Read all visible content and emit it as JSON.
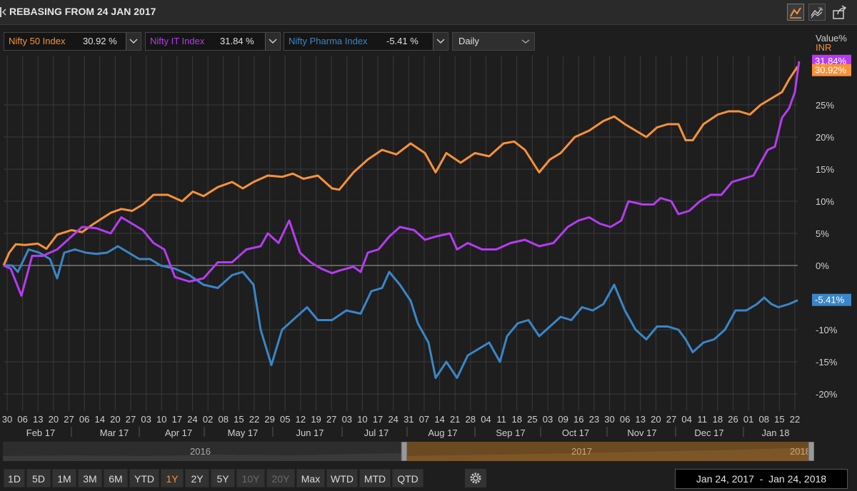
{
  "header": {
    "title": "REBASING FROM 24 JAN 2017"
  },
  "legend": [
    {
      "name": "Nifty 50 Index",
      "value": "30.92 %",
      "color": "#f7923a"
    },
    {
      "name": "Nifty IT Index",
      "value": "31.84 %",
      "color": "#b53cf0"
    },
    {
      "name": "Nifty Pharma Index",
      "value": "-5.41 %",
      "color": "#3a86c8"
    }
  ],
  "frequency": {
    "selected": "Daily"
  },
  "axis_label": {
    "line1": "Value%",
    "line2": "INR"
  },
  "chart_data": {
    "type": "line",
    "title": "REBASING FROM 24 JAN 2017",
    "ylabel": "Value% INR",
    "ylim": [
      -22,
      33
    ],
    "y_ticks": [
      {
        "v": 25,
        "label": "25%"
      },
      {
        "v": 20,
        "label": "20%"
      },
      {
        "v": 15,
        "label": "15%"
      },
      {
        "v": 10,
        "label": "10%"
      },
      {
        "v": 5,
        "label": "5%"
      },
      {
        "v": 0,
        "label": "0%"
      },
      {
        "v": -10,
        "label": "-10%"
      },
      {
        "v": -15,
        "label": "-15%"
      },
      {
        "v": -20,
        "label": "-20%"
      }
    ],
    "x_tick_labels": [
      "30",
      "06",
      "13",
      "20",
      "27",
      "06",
      "14",
      "20",
      "27",
      "03",
      "10",
      "17",
      "24",
      "02",
      "08",
      "15",
      "22",
      "29",
      "05",
      "12",
      "19",
      "27",
      "03",
      "10",
      "17",
      "24",
      "31",
      "07",
      "14",
      "21",
      "28",
      "04",
      "11",
      "18",
      "25",
      "03",
      "09",
      "16",
      "23",
      "30",
      "06",
      "13",
      "20",
      "27",
      "04",
      "11",
      "18",
      "26",
      "01",
      "08",
      "15",
      "22"
    ],
    "x_month_labels": [
      "Feb 17",
      "Mar 17",
      "Apr 17",
      "May 17",
      "Jun 17",
      "Jul 17",
      "Aug 17",
      "Sep 17",
      "Oct 17",
      "Nov 17",
      "Dec 17",
      "Jan 18"
    ],
    "last_value_labels": [
      "31.84%",
      "30.92%",
      "-5.41%"
    ],
    "series": [
      {
        "name": "Nifty 50 Index",
        "color": "#f7923a",
        "points": [
          [
            0,
            0
          ],
          [
            8,
            2
          ],
          [
            17,
            3.3
          ],
          [
            30,
            3.2
          ],
          [
            48,
            3.4
          ],
          [
            60,
            2.6
          ],
          [
            75,
            4.8
          ],
          [
            95,
            5.5
          ],
          [
            110,
            5.2
          ],
          [
            125,
            6.4
          ],
          [
            150,
            8.2
          ],
          [
            165,
            8.8
          ],
          [
            180,
            8.5
          ],
          [
            195,
            9.5
          ],
          [
            210,
            11
          ],
          [
            230,
            11
          ],
          [
            250,
            10
          ],
          [
            265,
            11.5
          ],
          [
            280,
            10.8
          ],
          [
            300,
            12.2
          ],
          [
            320,
            13
          ],
          [
            335,
            12
          ],
          [
            350,
            13
          ],
          [
            370,
            14
          ],
          [
            390,
            13.8
          ],
          [
            405,
            14.3
          ],
          [
            420,
            13.5
          ],
          [
            440,
            14
          ],
          [
            460,
            12
          ],
          [
            470,
            11.8
          ],
          [
            490,
            14.5
          ],
          [
            510,
            16.5
          ],
          [
            530,
            18
          ],
          [
            550,
            17.3
          ],
          [
            570,
            19
          ],
          [
            590,
            17.5
          ],
          [
            605,
            14.5
          ],
          [
            620,
            17.5
          ],
          [
            640,
            16
          ],
          [
            660,
            17.5
          ],
          [
            680,
            17
          ],
          [
            700,
            19
          ],
          [
            715,
            19.3
          ],
          [
            730,
            18
          ],
          [
            750,
            14.5
          ],
          [
            765,
            16.5
          ],
          [
            780,
            17.5
          ],
          [
            800,
            20
          ],
          [
            820,
            21
          ],
          [
            840,
            22.5
          ],
          [
            855,
            23.2
          ],
          [
            870,
            22
          ],
          [
            885,
            21
          ],
          [
            900,
            20
          ],
          [
            915,
            21.5
          ],
          [
            930,
            22
          ],
          [
            945,
            22
          ],
          [
            955,
            19.5
          ],
          [
            965,
            19.5
          ],
          [
            980,
            22
          ],
          [
            1000,
            23.5
          ],
          [
            1015,
            24
          ],
          [
            1030,
            24
          ],
          [
            1045,
            23.5
          ],
          [
            1060,
            25
          ],
          [
            1075,
            26
          ],
          [
            1090,
            27
          ],
          [
            1100,
            29
          ],
          [
            1112,
            31
          ]
        ]
      },
      {
        "name": "Nifty IT Index",
        "color": "#b53cf0",
        "points": [
          [
            0,
            0
          ],
          [
            10,
            -0.5
          ],
          [
            25,
            -4.7
          ],
          [
            40,
            1.5
          ],
          [
            55,
            1.5
          ],
          [
            75,
            2.5
          ],
          [
            95,
            4.5
          ],
          [
            110,
            6
          ],
          [
            130,
            5.8
          ],
          [
            150,
            5
          ],
          [
            165,
            7.5
          ],
          [
            180,
            6.5
          ],
          [
            195,
            5.5
          ],
          [
            210,
            3.5
          ],
          [
            225,
            2.5
          ],
          [
            240,
            -1.8
          ],
          [
            260,
            -2.5
          ],
          [
            280,
            -2
          ],
          [
            300,
            0.5
          ],
          [
            320,
            0.5
          ],
          [
            340,
            2.5
          ],
          [
            360,
            3
          ],
          [
            370,
            5
          ],
          [
            385,
            3.5
          ],
          [
            400,
            7
          ],
          [
            415,
            2
          ],
          [
            430,
            0.5
          ],
          [
            445,
            -0.5
          ],
          [
            460,
            -1.2
          ],
          [
            470,
            -0.8
          ],
          [
            490,
            -0.2
          ],
          [
            500,
            -1
          ],
          [
            510,
            2
          ],
          [
            525,
            2.5
          ],
          [
            540,
            4.5
          ],
          [
            555,
            6
          ],
          [
            575,
            5.5
          ],
          [
            590,
            4
          ],
          [
            605,
            4.5
          ],
          [
            625,
            5
          ],
          [
            635,
            2.5
          ],
          [
            650,
            3.5
          ],
          [
            670,
            2.5
          ],
          [
            690,
            2.5
          ],
          [
            710,
            3.5
          ],
          [
            730,
            4
          ],
          [
            750,
            3
          ],
          [
            770,
            3.5
          ],
          [
            790,
            6
          ],
          [
            805,
            7
          ],
          [
            820,
            7.5
          ],
          [
            835,
            6.5
          ],
          [
            850,
            6
          ],
          [
            865,
            7
          ],
          [
            875,
            10
          ],
          [
            895,
            9.5
          ],
          [
            910,
            9.5
          ],
          [
            920,
            10.5
          ],
          [
            935,
            10
          ],
          [
            945,
            8
          ],
          [
            960,
            8.5
          ],
          [
            975,
            10
          ],
          [
            990,
            11
          ],
          [
            1005,
            11
          ],
          [
            1020,
            13
          ],
          [
            1035,
            13.5
          ],
          [
            1050,
            14
          ],
          [
            1060,
            16
          ],
          [
            1070,
            18
          ],
          [
            1080,
            18.5
          ],
          [
            1090,
            23
          ],
          [
            1100,
            24.5
          ],
          [
            1108,
            27
          ],
          [
            1114,
            31.8
          ]
        ]
      },
      {
        "name": "Nifty Pharma Index",
        "color": "#3a86c8",
        "points": [
          [
            0,
            0
          ],
          [
            12,
            0
          ],
          [
            20,
            -1
          ],
          [
            35,
            2.5
          ],
          [
            50,
            2
          ],
          [
            65,
            1
          ],
          [
            75,
            -2
          ],
          [
            85,
            2
          ],
          [
            100,
            2.5
          ],
          [
            115,
            2
          ],
          [
            130,
            1.8
          ],
          [
            145,
            2
          ],
          [
            160,
            3
          ],
          [
            175,
            2
          ],
          [
            190,
            1
          ],
          [
            205,
            1
          ],
          [
            220,
            0
          ],
          [
            240,
            -0.5
          ],
          [
            260,
            -1.5
          ],
          [
            280,
            -3
          ],
          [
            300,
            -3.5
          ],
          [
            320,
            -1.5
          ],
          [
            335,
            -1
          ],
          [
            350,
            -3
          ],
          [
            360,
            -10
          ],
          [
            375,
            -15.5
          ],
          [
            390,
            -10
          ],
          [
            410,
            -8
          ],
          [
            425,
            -6.5
          ],
          [
            440,
            -8.5
          ],
          [
            460,
            -8.5
          ],
          [
            480,
            -7
          ],
          [
            500,
            -7.5
          ],
          [
            515,
            -4
          ],
          [
            530,
            -3.5
          ],
          [
            540,
            -1
          ],
          [
            555,
            -3
          ],
          [
            570,
            -5.5
          ],
          [
            580,
            -9
          ],
          [
            595,
            -12
          ],
          [
            605,
            -17.5
          ],
          [
            620,
            -15
          ],
          [
            635,
            -17.5
          ],
          [
            650,
            -14
          ],
          [
            665,
            -13
          ],
          [
            680,
            -12
          ],
          [
            695,
            -15
          ],
          [
            705,
            -11
          ],
          [
            720,
            -9
          ],
          [
            735,
            -8.5
          ],
          [
            750,
            -11
          ],
          [
            765,
            -9.5
          ],
          [
            780,
            -8
          ],
          [
            795,
            -8.5
          ],
          [
            810,
            -6.5
          ],
          [
            825,
            -7
          ],
          [
            840,
            -6
          ],
          [
            855,
            -3
          ],
          [
            870,
            -7
          ],
          [
            885,
            -10
          ],
          [
            900,
            -11.5
          ],
          [
            915,
            -9.5
          ],
          [
            930,
            -9.5
          ],
          [
            945,
            -10
          ],
          [
            955,
            -11.5
          ],
          [
            965,
            -13.5
          ],
          [
            980,
            -12
          ],
          [
            995,
            -11.5
          ],
          [
            1010,
            -10
          ],
          [
            1025,
            -7
          ],
          [
            1040,
            -7
          ],
          [
            1055,
            -6
          ],
          [
            1065,
            -5
          ],
          [
            1075,
            -6
          ],
          [
            1085,
            -6.5
          ],
          [
            1100,
            -6
          ],
          [
            1112,
            -5.4
          ]
        ]
      }
    ]
  },
  "navigator": {
    "years": [
      "2016",
      "2017",
      "2018"
    ]
  },
  "range_buttons": [
    {
      "label": "1D",
      "state": "normal"
    },
    {
      "label": "5D",
      "state": "normal"
    },
    {
      "label": "1M",
      "state": "normal"
    },
    {
      "label": "3M",
      "state": "normal"
    },
    {
      "label": "6M",
      "state": "normal"
    },
    {
      "label": "YTD",
      "state": "normal"
    },
    {
      "label": "1Y",
      "state": "active"
    },
    {
      "label": "2Y",
      "state": "normal"
    },
    {
      "label": "5Y",
      "state": "normal"
    },
    {
      "label": "10Y",
      "state": "disabled"
    },
    {
      "label": "20Y",
      "state": "disabled"
    },
    {
      "label": "Max",
      "state": "normal"
    },
    {
      "label": "WTD",
      "state": "normal"
    },
    {
      "label": "MTD",
      "state": "normal"
    },
    {
      "label": "QTD",
      "state": "normal"
    }
  ],
  "date_range": {
    "start": "Jan 24, 2017",
    "end": "Jan 24, 2018"
  },
  "icons": [
    "back-arrow-icon",
    "line-chart-icon",
    "compare-chart-icon",
    "share-icon",
    "settings-gear-icon",
    "chevron-down-icon"
  ]
}
